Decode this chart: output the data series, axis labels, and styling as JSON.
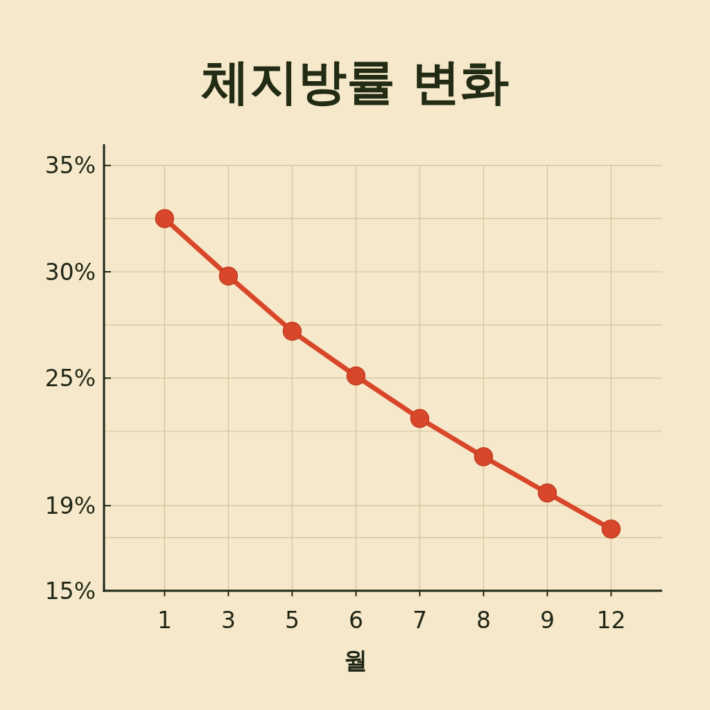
{
  "chart_data": {
    "type": "line",
    "title": "체지방률 변화",
    "xlabel": "월",
    "categories": [
      "1",
      "3",
      "5",
      "6",
      "7",
      "8",
      "9",
      "12"
    ],
    "series": [
      {
        "color": "#d9472b",
        "values": [
          32.5,
          29.8,
          27.2,
          25.1,
          23.1,
          21.3,
          19.6,
          17.9
        ]
      }
    ],
    "ylim": [
      15,
      36
    ],
    "yticks": [
      {
        "value": 15,
        "label": "15%"
      },
      {
        "value": 17.5,
        "label": null
      },
      {
        "value": 19,
        "label": "19%"
      },
      {
        "value": 22.5,
        "label": null
      },
      {
        "value": 25,
        "label": "25%"
      },
      {
        "value": 27.5,
        "label": null
      },
      {
        "value": 30,
        "label": "30%"
      },
      {
        "value": 32.5,
        "label": null
      },
      {
        "value": 35,
        "label": "35%"
      }
    ],
    "grid": true,
    "marker": "circle",
    "line_style": "solid"
  }
}
